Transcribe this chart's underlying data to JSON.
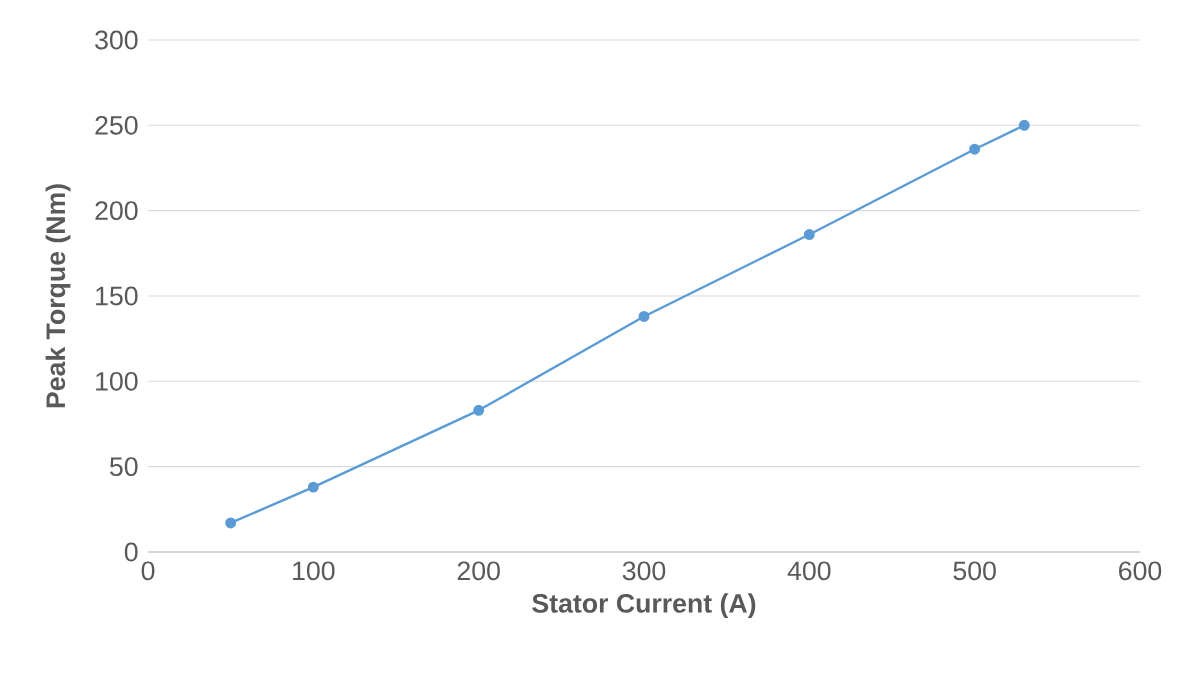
{
  "chart_data": {
    "type": "line",
    "xlabel": "Stator Current (A)",
    "ylabel": "Peak Torque (Nm)",
    "x": [
      50,
      100,
      200,
      300,
      400,
      500,
      530
    ],
    "series": [
      {
        "color": "#5b9bd5",
        "values": [
          17,
          38,
          83,
          138,
          186,
          236,
          250
        ]
      }
    ],
    "xlim": [
      0,
      600
    ],
    "xticks": [
      0,
      100,
      200,
      300,
      400,
      500,
      600
    ],
    "ylim": [
      0,
      300
    ],
    "yticks": [
      0,
      50,
      100,
      150,
      200,
      250,
      300
    ],
    "grid": "y",
    "marker": "circle",
    "line_style": "solid"
  }
}
